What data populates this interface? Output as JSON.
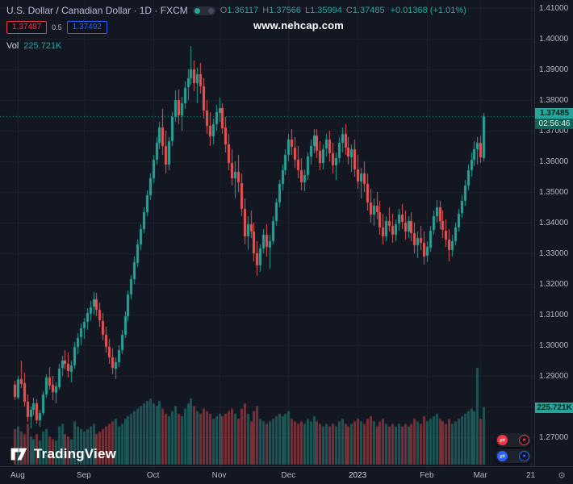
{
  "watermark": {
    "text": "www.nehcap.com"
  },
  "legend": {
    "symbol_title": "U.S. Dollar / Canadian Dollar · 1D · FXCM",
    "ohlc": {
      "o_label": "O",
      "o_value": "1.36117",
      "h_label": "H",
      "h_value": "1.37566",
      "l_label": "L",
      "l_value": "1.35994",
      "c_label": "C",
      "c_value": "1.37485",
      "change": "+0.01368 (+1.01%)"
    },
    "bid": "1.37487",
    "spread": "0.5",
    "ask": "1.37492",
    "vol_label": "Vol",
    "vol_value": "225.721K"
  },
  "price_axis": {
    "ticks": [
      "1.41000",
      "1.40000",
      "1.39000",
      "1.38000",
      "1.37000",
      "1.36000",
      "1.35000",
      "1.34000",
      "1.33000",
      "1.32000",
      "1.31000",
      "1.30000",
      "1.29000",
      "1.28000",
      "1.27000"
    ],
    "current_price": "1.37485",
    "countdown": "02:56:46",
    "volume_badge": "225.721K"
  },
  "time_axis": {
    "labels": [
      {
        "text": "Aug",
        "i": 1,
        "major": false
      },
      {
        "text": "Sep",
        "i": 22,
        "major": false
      },
      {
        "text": "Oct",
        "i": 44,
        "major": false
      },
      {
        "text": "Nov",
        "i": 65,
        "major": false
      },
      {
        "text": "Dec",
        "i": 87,
        "major": false
      },
      {
        "text": "2023",
        "i": 109,
        "major": true
      },
      {
        "text": "Feb",
        "i": 131,
        "major": false
      },
      {
        "text": "Mar",
        "i": 148,
        "major": false
      },
      {
        "text": "21",
        "i": 164,
        "major": false
      }
    ]
  },
  "footer": {
    "logo_text": "TradingView"
  },
  "icons": {
    "legend_toggle": "visibility-dots",
    "trade_sell": "transfer-arrows-red",
    "trade_buy": "transfer-arrows-blue",
    "time_axis_corner": "gear"
  },
  "colors": {
    "background": "#131722",
    "up": "#26a69a",
    "down": "#ef5350",
    "vol_up": "rgba(38,166,154,0.45)",
    "vol_down": "rgba(239,83,80,0.45)",
    "grid": "rgba(240,243,250,0.055)",
    "axis_text": "#b2b5be",
    "sell_red": "#f23645",
    "buy_blue": "#2962ff",
    "badge_green": "#26a69a"
  },
  "chart_data": {
    "type": "candlestick",
    "title": "U.S. Dollar / Canadian Dollar",
    "timeframe": "1D",
    "exchange": "FXCM",
    "ylim": [
      1.27,
      1.41
    ],
    "grid": true,
    "volume_axis_max_k": 380,
    "candle_format": [
      "open",
      "high",
      "low",
      "close",
      "volume_k"
    ],
    "last_ohlc": {
      "open": 1.36117,
      "high": 1.37566,
      "low": 1.35994,
      "close": 1.37485,
      "change": "+0.01368 (+1.01%)",
      "volume_k": 225.721
    },
    "candles": [
      [
        1.287,
        1.2885,
        1.282,
        1.283,
        140
      ],
      [
        1.283,
        1.29,
        1.2825,
        1.289,
        150
      ],
      [
        1.289,
        1.295,
        1.286,
        1.2875,
        130
      ],
      [
        1.2875,
        1.291,
        1.28,
        1.2815,
        120
      ],
      [
        1.2815,
        1.284,
        1.275,
        1.2765,
        160
      ],
      [
        1.2765,
        1.28,
        1.273,
        1.279,
        110
      ],
      [
        1.279,
        1.283,
        1.277,
        1.281,
        100
      ],
      [
        1.281,
        1.2825,
        1.2745,
        1.2755,
        120
      ],
      [
        1.2755,
        1.279,
        1.2735,
        1.278,
        95
      ],
      [
        1.278,
        1.285,
        1.277,
        1.284,
        130
      ],
      [
        1.284,
        1.2905,
        1.283,
        1.2895,
        140
      ],
      [
        1.2895,
        1.293,
        1.2855,
        1.287,
        110
      ],
      [
        1.287,
        1.29,
        1.282,
        1.2845,
        100
      ],
      [
        1.2845,
        1.288,
        1.281,
        1.2865,
        95
      ],
      [
        1.2865,
        1.294,
        1.2855,
        1.2925,
        150
      ],
      [
        1.2925,
        1.2965,
        1.29,
        1.295,
        160
      ],
      [
        1.295,
        1.2985,
        1.292,
        1.294,
        120
      ],
      [
        1.294,
        1.2975,
        1.2895,
        1.2915,
        110
      ],
      [
        1.2915,
        1.295,
        1.288,
        1.2935,
        100
      ],
      [
        1.2935,
        1.301,
        1.2925,
        1.2995,
        170
      ],
      [
        1.2995,
        1.304,
        1.297,
        1.3025,
        150
      ],
      [
        1.3025,
        1.307,
        1.3,
        1.3055,
        140
      ],
      [
        1.3055,
        1.309,
        1.302,
        1.3075,
        130
      ],
      [
        1.3075,
        1.312,
        1.305,
        1.3105,
        140
      ],
      [
        1.3105,
        1.3145,
        1.308,
        1.3125,
        150
      ],
      [
        1.3125,
        1.3175,
        1.31,
        1.315,
        160
      ],
      [
        1.315,
        1.317,
        1.3095,
        1.3115,
        120
      ],
      [
        1.3115,
        1.314,
        1.306,
        1.308,
        130
      ],
      [
        1.308,
        1.3105,
        1.3015,
        1.3035,
        140
      ],
      [
        1.3035,
        1.306,
        1.2975,
        1.2995,
        150
      ],
      [
        1.2995,
        1.302,
        1.294,
        1.296,
        160
      ],
      [
        1.296,
        1.299,
        1.2905,
        1.2925,
        170
      ],
      [
        1.2925,
        1.296,
        1.2889,
        1.2945,
        180
      ],
      [
        1.2945,
        1.3,
        1.293,
        1.2985,
        150
      ],
      [
        1.2985,
        1.305,
        1.297,
        1.3035,
        160
      ],
      [
        1.3035,
        1.311,
        1.3025,
        1.3095,
        180
      ],
      [
        1.3095,
        1.318,
        1.308,
        1.3165,
        190
      ],
      [
        1.3165,
        1.323,
        1.315,
        1.3215,
        200
      ],
      [
        1.3215,
        1.329,
        1.32,
        1.327,
        210
      ],
      [
        1.327,
        1.3345,
        1.3255,
        1.333,
        220
      ],
      [
        1.333,
        1.3395,
        1.331,
        1.338,
        230
      ],
      [
        1.338,
        1.345,
        1.3365,
        1.3435,
        240
      ],
      [
        1.3435,
        1.3505,
        1.342,
        1.349,
        250
      ],
      [
        1.349,
        1.356,
        1.3475,
        1.3545,
        260
      ],
      [
        1.3545,
        1.362,
        1.353,
        1.3605,
        240
      ],
      [
        1.3605,
        1.368,
        1.359,
        1.366,
        230
      ],
      [
        1.366,
        1.373,
        1.364,
        1.371,
        250
      ],
      [
        1.371,
        1.377,
        1.362,
        1.365,
        220
      ],
      [
        1.365,
        1.37,
        1.356,
        1.359,
        200
      ],
      [
        1.359,
        1.368,
        1.357,
        1.3665,
        190
      ],
      [
        1.3665,
        1.376,
        1.365,
        1.3745,
        210
      ],
      [
        1.3745,
        1.3832,
        1.373,
        1.38,
        230
      ],
      [
        1.38,
        1.3835,
        1.372,
        1.375,
        200
      ],
      [
        1.375,
        1.381,
        1.37,
        1.379,
        190
      ],
      [
        1.379,
        1.386,
        1.377,
        1.384,
        220
      ],
      [
        1.384,
        1.39,
        1.38,
        1.387,
        240
      ],
      [
        1.387,
        1.3977,
        1.385,
        1.39,
        260
      ],
      [
        1.39,
        1.393,
        1.383,
        1.3855,
        230
      ],
      [
        1.3855,
        1.3905,
        1.379,
        1.3885,
        210
      ],
      [
        1.3885,
        1.392,
        1.382,
        1.3845,
        200
      ],
      [
        1.3845,
        1.387,
        1.374,
        1.3765,
        220
      ],
      [
        1.3765,
        1.38,
        1.369,
        1.3715,
        210
      ],
      [
        1.3715,
        1.376,
        1.365,
        1.368,
        200
      ],
      [
        1.368,
        1.374,
        1.3655,
        1.372,
        180
      ],
      [
        1.372,
        1.3785,
        1.37,
        1.376,
        190
      ],
      [
        1.376,
        1.3808,
        1.373,
        1.3775,
        200
      ],
      [
        1.3775,
        1.379,
        1.369,
        1.371,
        190
      ],
      [
        1.371,
        1.3745,
        1.363,
        1.3655,
        200
      ],
      [
        1.3655,
        1.369,
        1.357,
        1.3595,
        210
      ],
      [
        1.3595,
        1.364,
        1.352,
        1.3545,
        220
      ],
      [
        1.3545,
        1.36,
        1.348,
        1.3565,
        200
      ],
      [
        1.3565,
        1.362,
        1.35,
        1.353,
        180
      ],
      [
        1.353,
        1.356,
        1.342,
        1.3445,
        220
      ],
      [
        1.3445,
        1.348,
        1.333,
        1.3355,
        240
      ],
      [
        1.3355,
        1.342,
        1.331,
        1.3395,
        200
      ],
      [
        1.3395,
        1.344,
        1.335,
        1.337,
        170
      ],
      [
        1.337,
        1.34,
        1.3275,
        1.33,
        210
      ],
      [
        1.33,
        1.334,
        1.3226,
        1.326,
        230
      ],
      [
        1.326,
        1.333,
        1.324,
        1.3315,
        180
      ],
      [
        1.3315,
        1.338,
        1.33,
        1.336,
        170
      ],
      [
        1.336,
        1.3395,
        1.329,
        1.332,
        160
      ],
      [
        1.332,
        1.336,
        1.325,
        1.334,
        170
      ],
      [
        1.334,
        1.342,
        1.333,
        1.3405,
        180
      ],
      [
        1.3405,
        1.348,
        1.339,
        1.3465,
        190
      ],
      [
        1.3465,
        1.354,
        1.345,
        1.3525,
        200
      ],
      [
        1.3525,
        1.359,
        1.3505,
        1.357,
        190
      ],
      [
        1.357,
        1.364,
        1.3555,
        1.362,
        200
      ],
      [
        1.362,
        1.369,
        1.36,
        1.367,
        210
      ],
      [
        1.367,
        1.3705,
        1.362,
        1.3645,
        180
      ],
      [
        1.3645,
        1.368,
        1.358,
        1.3605,
        170
      ],
      [
        1.3605,
        1.365,
        1.3545,
        1.357,
        160
      ],
      [
        1.357,
        1.361,
        1.3505,
        1.353,
        170
      ],
      [
        1.353,
        1.3575,
        1.3502,
        1.3555,
        160
      ],
      [
        1.3555,
        1.363,
        1.354,
        1.3615,
        180
      ],
      [
        1.3615,
        1.367,
        1.359,
        1.365,
        170
      ],
      [
        1.365,
        1.3705,
        1.3625,
        1.3685,
        190
      ],
      [
        1.3685,
        1.3705,
        1.361,
        1.3635,
        170
      ],
      [
        1.3635,
        1.3665,
        1.357,
        1.3595,
        160
      ],
      [
        1.3595,
        1.3655,
        1.3575,
        1.364,
        150
      ],
      [
        1.364,
        1.369,
        1.3615,
        1.367,
        160
      ],
      [
        1.367,
        1.37,
        1.36,
        1.3625,
        150
      ],
      [
        1.3625,
        1.366,
        1.356,
        1.3585,
        160
      ],
      [
        1.3585,
        1.363,
        1.354,
        1.361,
        150
      ],
      [
        1.361,
        1.368,
        1.3595,
        1.366,
        170
      ],
      [
        1.366,
        1.371,
        1.363,
        1.369,
        180
      ],
      [
        1.369,
        1.372,
        1.362,
        1.3645,
        160
      ],
      [
        1.3645,
        1.368,
        1.359,
        1.3615,
        150
      ],
      [
        1.3615,
        1.3655,
        1.3565,
        1.364,
        160
      ],
      [
        1.364,
        1.367,
        1.355,
        1.3575,
        170
      ],
      [
        1.3575,
        1.362,
        1.351,
        1.3535,
        180
      ],
      [
        1.3535,
        1.358,
        1.348,
        1.356,
        170
      ],
      [
        1.356,
        1.36,
        1.35,
        1.3525,
        160
      ],
      [
        1.3525,
        1.356,
        1.344,
        1.3465,
        180
      ],
      [
        1.3465,
        1.351,
        1.34,
        1.3425,
        190
      ],
      [
        1.3425,
        1.348,
        1.339,
        1.3455,
        170
      ],
      [
        1.3455,
        1.35,
        1.341,
        1.3435,
        150
      ],
      [
        1.3435,
        1.347,
        1.336,
        1.3385,
        170
      ],
      [
        1.3385,
        1.343,
        1.333,
        1.3355,
        180
      ],
      [
        1.3355,
        1.342,
        1.334,
        1.3405,
        160
      ],
      [
        1.3405,
        1.345,
        1.337,
        1.339,
        150
      ],
      [
        1.339,
        1.343,
        1.3335,
        1.336,
        160
      ],
      [
        1.336,
        1.341,
        1.334,
        1.3395,
        150
      ],
      [
        1.3395,
        1.3445,
        1.3375,
        1.3425,
        160
      ],
      [
        1.3425,
        1.346,
        1.338,
        1.34,
        150
      ],
      [
        1.34,
        1.344,
        1.3345,
        1.337,
        160
      ],
      [
        1.337,
        1.342,
        1.335,
        1.3405,
        150
      ],
      [
        1.3405,
        1.3435,
        1.334,
        1.3365,
        160
      ],
      [
        1.3365,
        1.34,
        1.33,
        1.3325,
        180
      ],
      [
        1.3325,
        1.337,
        1.3285,
        1.335,
        170
      ],
      [
        1.335,
        1.339,
        1.331,
        1.3335,
        160
      ],
      [
        1.3335,
        1.337,
        1.3262,
        1.329,
        190
      ],
      [
        1.329,
        1.334,
        1.327,
        1.332,
        170
      ],
      [
        1.332,
        1.339,
        1.3305,
        1.3375,
        180
      ],
      [
        1.3375,
        1.344,
        1.336,
        1.342,
        190
      ],
      [
        1.342,
        1.3475,
        1.34,
        1.345,
        200
      ],
      [
        1.345,
        1.347,
        1.338,
        1.3405,
        180
      ],
      [
        1.3405,
        1.344,
        1.335,
        1.3375,
        170
      ],
      [
        1.3375,
        1.341,
        1.332,
        1.3345,
        160
      ],
      [
        1.3345,
        1.338,
        1.3275,
        1.331,
        180
      ],
      [
        1.331,
        1.336,
        1.329,
        1.334,
        160
      ],
      [
        1.334,
        1.34,
        1.3325,
        1.3385,
        170
      ],
      [
        1.3385,
        1.3445,
        1.337,
        1.343,
        180
      ],
      [
        1.343,
        1.349,
        1.3415,
        1.347,
        190
      ],
      [
        1.347,
        1.354,
        1.3455,
        1.352,
        200
      ],
      [
        1.352,
        1.359,
        1.3505,
        1.357,
        210
      ],
      [
        1.357,
        1.363,
        1.355,
        1.3605,
        220
      ],
      [
        1.3605,
        1.3665,
        1.3585,
        1.364,
        210
      ],
      [
        1.364,
        1.368,
        1.359,
        1.366,
        380
      ],
      [
        1.366,
        1.3685,
        1.3595,
        1.3612,
        180
      ],
      [
        1.36117,
        1.37566,
        1.35994,
        1.37485,
        225.721
      ]
    ]
  }
}
